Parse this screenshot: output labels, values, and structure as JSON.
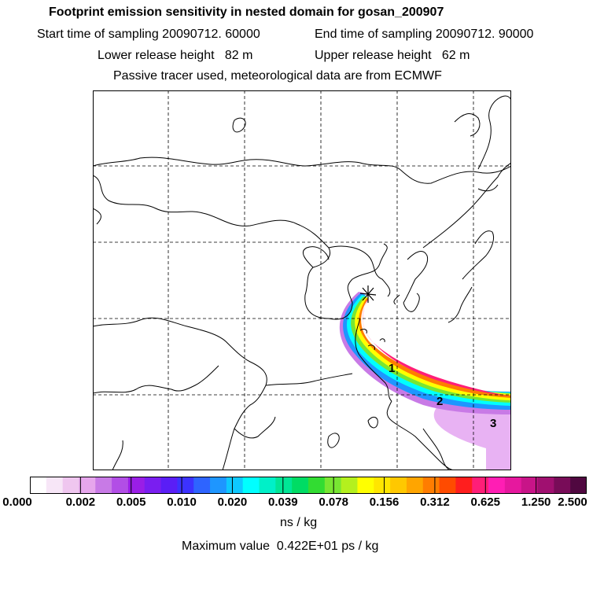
{
  "header": {
    "title": "Footprint emission sensitivity in nested domain for gosan_200907",
    "start_label": "Start time of sampling 20090712. 60000",
    "end_label": "End time of sampling 20090712. 90000",
    "lower_label": "Lower release height   82 m",
    "upper_label": "Upper release height   62 m",
    "info_label": "Passive tracer used, meteorological data are from ECMWF"
  },
  "map": {
    "station_marker": "star",
    "plume_markers": [
      "1",
      "2",
      "3"
    ],
    "colors": {
      "coast": "#000000",
      "grid": "#000000"
    }
  },
  "colorbar": {
    "colors": [
      "#ffffff",
      "#f7e6f7",
      "#efc6ef",
      "#e6a6ec",
      "#c87ae6",
      "#b24ee6",
      "#9a1ee6",
      "#7a1ef0",
      "#5a1ef6",
      "#3c32ff",
      "#2e64ff",
      "#1e96ff",
      "#0ec8ff",
      "#00ffff",
      "#00f0c8",
      "#00e696",
      "#00dc64",
      "#32dc32",
      "#78e632",
      "#b4f01e",
      "#ffff00",
      "#ffe600",
      "#ffc800",
      "#ffa500",
      "#ff7d00",
      "#ff4b00",
      "#ff1e1e",
      "#ff1e78",
      "#ff1eb4",
      "#e6189e",
      "#c81488",
      "#a01070",
      "#780c58",
      "#500840"
    ],
    "labels": [
      "0.000",
      "0.002",
      "0.005",
      "0.010",
      "0.020",
      "0.039",
      "0.078",
      "0.156",
      "0.312",
      "0.625",
      "1.250",
      "2.500"
    ],
    "unit": "ns / kg"
  },
  "footer": {
    "max_value": "Maximum value  0.422E+01 ps / kg"
  }
}
